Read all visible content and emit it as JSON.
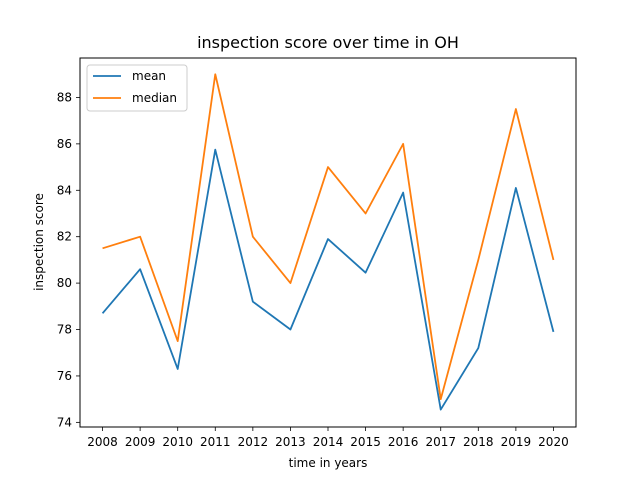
{
  "chart_data": {
    "type": "line",
    "title": "inspection score over time in OH",
    "xlabel": "time in years",
    "ylabel": "inspection score",
    "x": [
      2008,
      2009,
      2010,
      2011,
      2012,
      2013,
      2014,
      2015,
      2016,
      2017,
      2018,
      2019,
      2020
    ],
    "xticks": [
      "2008",
      "2009",
      "2010",
      "2011",
      "2012",
      "2013",
      "2014",
      "2015",
      "2016",
      "2017",
      "2018",
      "2019",
      "2020"
    ],
    "yticks": [
      "74",
      "76",
      "78",
      "80",
      "82",
      "84",
      "86",
      "88"
    ],
    "ylim": [
      73.8,
      89.7
    ],
    "xlim": [
      2007.4,
      2020.6
    ],
    "grid": false,
    "legend_position": "top-left",
    "series": [
      {
        "name": "mean",
        "color": "#1f77b4",
        "values": [
          78.7,
          80.6,
          76.3,
          85.75,
          79.2,
          78.0,
          81.9,
          80.45,
          83.9,
          74.55,
          77.2,
          84.1,
          77.9
        ]
      },
      {
        "name": "median",
        "color": "#ff7f0e",
        "values": [
          81.5,
          82.0,
          77.5,
          89.0,
          82.0,
          80.0,
          85.0,
          83.0,
          86.0,
          75.0,
          81.0,
          87.5,
          81.0
        ]
      }
    ]
  }
}
